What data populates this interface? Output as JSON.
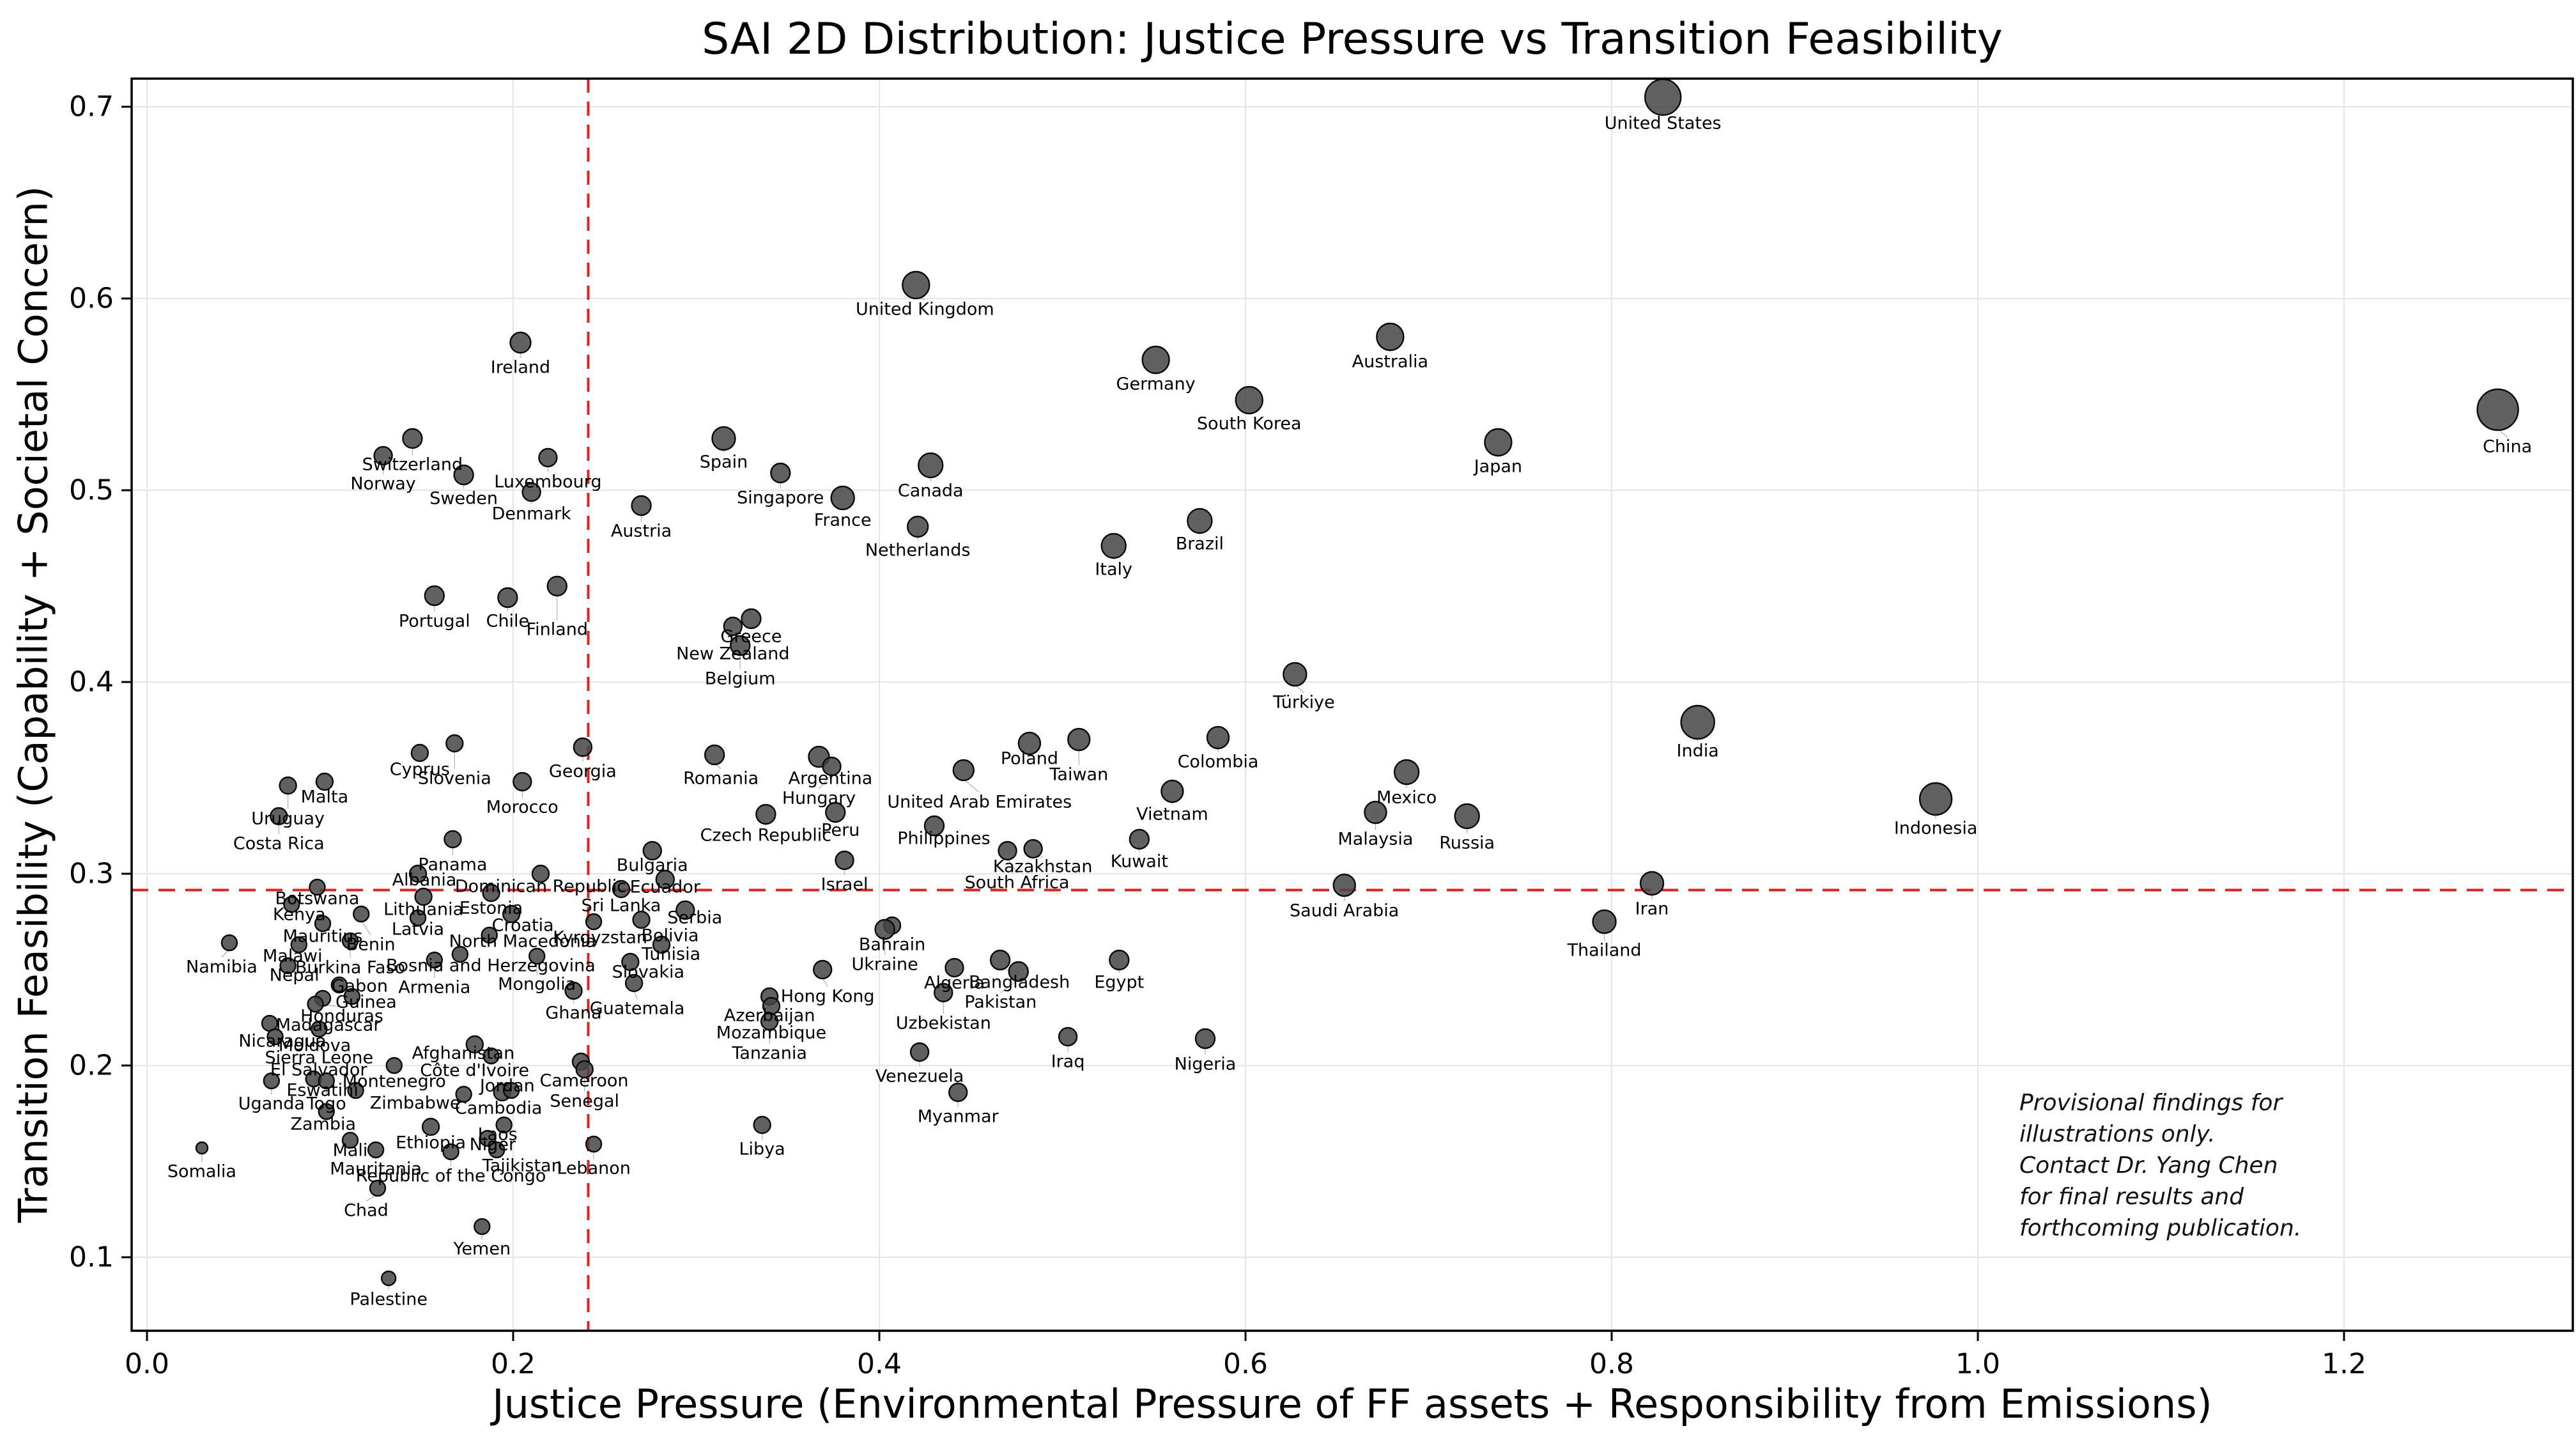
{
  "title": "SAI 2D Distribution: Justice Pressure vs Transition Feasibility",
  "annotation": {
    "lines": [
      "Provisional findings for",
      "illustrations only.",
      "Contact Dr. Yang Chen",
      "for final results and",
      "forthcoming publication."
    ]
  },
  "colors": {
    "dot_fill": "#454545",
    "dot_stroke": "#0a0a0a",
    "grid": "#e5e5e5",
    "threshold": "#dd2222",
    "leader": "#b3b3b3",
    "spine": "#000000"
  },
  "chart_data": {
    "type": "scatter",
    "title": "SAI 2D Distribution: Justice Pressure vs Transition Feasibility",
    "xlabel": "Justice Pressure (Environmental Pressure of FF assets + Responsibility from Emissions)",
    "ylabel": "Transition Feasibility (Capability + Societal Concern)",
    "xlim": [
      -0.0084,
      1.325
    ],
    "ylim": [
      0.0617,
      0.7147
    ],
    "x_ticks": [
      0.0,
      0.2,
      0.4,
      0.6,
      0.8,
      1.0,
      1.2
    ],
    "y_ticks": [
      0.1,
      0.2,
      0.3,
      0.4,
      0.5,
      0.6,
      0.7
    ],
    "x_tick_labels": [
      "0.0",
      "0.2",
      "0.4",
      "0.6",
      "0.8",
      "1.0",
      "1.2"
    ],
    "y_tick_labels": [
      "0.1",
      "0.2",
      "0.3",
      "0.4",
      "0.5",
      "0.6",
      "0.7"
    ],
    "grid": true,
    "threshold_x": 0.241,
    "threshold_y": 0.2915,
    "points": [
      [
        "United States",
        0.828,
        0.705,
        28,
        0,
        41
      ],
      [
        "China",
        1.284,
        0.542,
        32,
        15,
        58
      ],
      [
        "United Kingdom",
        0.42,
        0.607,
        21,
        14,
        38
      ],
      [
        "Australia",
        0.679,
        0.58,
        21,
        0,
        39
      ],
      [
        "Germany",
        0.551,
        0.568,
        21,
        0,
        38
      ],
      [
        "South Korea",
        0.602,
        0.547,
        21,
        0,
        37
      ],
      [
        "Japan",
        0.738,
        0.525,
        21,
        0,
        38
      ],
      [
        "Ireland",
        0.204,
        0.577,
        16,
        0,
        39
      ],
      [
        "Switzerland",
        0.145,
        0.527,
        15,
        0,
        41
      ],
      [
        "Norway",
        0.129,
        0.518,
        14,
        0,
        44
      ],
      [
        "Sweden",
        0.173,
        0.508,
        15,
        0,
        37
      ],
      [
        "Luxembourg",
        0.219,
        0.517,
        14,
        0,
        38
      ],
      [
        "Denmark",
        0.21,
        0.499,
        14,
        0,
        34
      ],
      [
        "Spain",
        0.315,
        0.527,
        18,
        0,
        37
      ],
      [
        "Singapore",
        0.346,
        0.509,
        15,
        0,
        39
      ],
      [
        "France",
        0.38,
        0.496,
        18,
        0,
        35
      ],
      [
        "Canada",
        0.428,
        0.513,
        19,
        0,
        40
      ],
      [
        "Netherlands",
        0.421,
        0.481,
        16,
        0,
        37
      ],
      [
        "Austria",
        0.27,
        0.492,
        15,
        0,
        40
      ],
      [
        "Italy",
        0.528,
        0.471,
        19,
        0,
        37
      ],
      [
        "Brazil",
        0.575,
        0.484,
        19,
        0,
        36
      ],
      [
        "Portugal",
        0.157,
        0.445,
        15,
        0,
        40
      ],
      [
        "Chile",
        0.197,
        0.444,
        15,
        0,
        37
      ],
      [
        "Finland",
        0.224,
        0.45,
        15,
        0,
        68
      ],
      [
        "Greece",
        0.33,
        0.433,
        15,
        0,
        28
      ],
      [
        "New Zealand",
        0.32,
        0.429,
        14,
        0,
        43
      ],
      [
        "Belgium",
        0.324,
        0.419,
        15,
        0,
        52
      ],
      [
        "Türkiye",
        0.627,
        0.404,
        18,
        14,
        44
      ],
      [
        "India",
        0.847,
        0.379,
        26,
        0,
        45
      ],
      [
        "Indonesia",
        0.977,
        0.339,
        25,
        0,
        46
      ],
      [
        "Mexico",
        0.688,
        0.353,
        19,
        0,
        40
      ],
      [
        "Malaysia",
        0.671,
        0.332,
        17,
        0,
        42
      ],
      [
        "Russia",
        0.721,
        0.33,
        19,
        0,
        42
      ],
      [
        "Saudi Arabia",
        0.654,
        0.294,
        17,
        0,
        40
      ],
      [
        "Iran",
        0.822,
        0.295,
        18,
        0,
        40
      ],
      [
        "Thailand",
        0.796,
        0.275,
        18,
        0,
        45
      ],
      [
        "Cyprus",
        0.149,
        0.363,
        13,
        0,
        26
      ],
      [
        "Slovenia",
        0.168,
        0.368,
        13,
        0,
        55
      ],
      [
        "Georgia",
        0.238,
        0.366,
        14,
        0,
        38
      ],
      [
        "Malta",
        0.097,
        0.348,
        13,
        0,
        24
      ],
      [
        "Uruguay",
        0.077,
        0.346,
        13,
        0,
        52
      ],
      [
        "Costa Rica",
        0.072,
        0.33,
        13,
        0,
        43
      ],
      [
        "Morocco",
        0.205,
        0.348,
        14,
        0,
        40
      ],
      [
        "Panama",
        0.167,
        0.318,
        13,
        0,
        40
      ],
      [
        "Romania",
        0.31,
        0.362,
        15,
        10,
        37
      ],
      [
        "Argentina",
        0.367,
        0.361,
        16,
        18,
        34
      ],
      [
        "Hungary",
        0.374,
        0.356,
        14,
        -20,
        50
      ],
      [
        "United Arab Emirates",
        0.446,
        0.354,
        16,
        25,
        50
      ],
      [
        "Poland",
        0.482,
        0.368,
        17,
        0,
        24
      ],
      [
        "Taiwan",
        0.509,
        0.37,
        17,
        0,
        55
      ],
      [
        "Colombia",
        0.585,
        0.371,
        17,
        0,
        38
      ],
      [
        "Vietnam",
        0.56,
        0.343,
        17,
        0,
        36
      ],
      [
        "Peru",
        0.376,
        0.332,
        15,
        8,
        28
      ],
      [
        "Czech Republic",
        0.338,
        0.331,
        15,
        0,
        33
      ],
      [
        "Philippines",
        0.43,
        0.325,
        15,
        15,
        20
      ],
      [
        "Kazakhstan",
        0.484,
        0.313,
        14,
        15,
        28
      ],
      [
        "South Africa",
        0.47,
        0.312,
        14,
        15,
        50
      ],
      [
        "Kuwait",
        0.542,
        0.318,
        15,
        0,
        35
      ],
      [
        "Israel",
        0.381,
        0.307,
        14,
        0,
        38
      ],
      [
        "Bulgaria",
        0.276,
        0.312,
        14,
        0,
        23
      ],
      [
        "Ecuador",
        0.283,
        0.297,
        14,
        0,
        12
      ],
      [
        "Albania",
        0.148,
        0.3,
        13,
        10,
        10
      ],
      [
        "Dominican Republic",
        0.215,
        0.3,
        13,
        0,
        20
      ],
      [
        "Botswana",
        0.093,
        0.293,
        12,
        0,
        18
      ],
      [
        "Kenya",
        0.079,
        0.284,
        12,
        12,
        16
      ],
      [
        "Sri Lanka",
        0.259,
        0.292,
        13,
        0,
        26
      ],
      [
        "Serbia",
        0.294,
        0.281,
        14,
        15,
        12
      ],
      [
        "Lithuania",
        0.151,
        0.288,
        13,
        0,
        20
      ],
      [
        "Estonia",
        0.188,
        0.29,
        13,
        0,
        24
      ],
      [
        "Latvia",
        0.148,
        0.277,
        12,
        0,
        18
      ],
      [
        "Croatia",
        0.199,
        0.279,
        13,
        18,
        18
      ],
      [
        "Mauritius",
        0.096,
        0.274,
        12,
        0,
        20
      ],
      [
        "Bolivia",
        0.27,
        0.276,
        13,
        45,
        25
      ],
      [
        "Kyrgyzstan",
        0.244,
        0.275,
        12,
        10,
        25
      ],
      [
        "Benin",
        0.117,
        0.279,
        12,
        15,
        48
      ],
      [
        "North Macedonia",
        0.187,
        0.268,
        12,
        52,
        10
      ],
      [
        "Tunisia",
        0.281,
        0.263,
        13,
        15,
        15
      ],
      [
        "Malawi",
        0.083,
        0.263,
        12,
        -10,
        18
      ],
      [
        "Burkina Faso",
        0.111,
        0.265,
        12,
        0,
        42
      ],
      [
        "Bosnia and Herzegovina",
        0.171,
        0.258,
        12,
        48,
        18
      ],
      [
        "Namibia",
        0.045,
        0.264,
        12,
        -12,
        38
      ],
      [
        "Nepal",
        0.077,
        0.252,
        12,
        10,
        15
      ],
      [
        "Slovakia",
        0.264,
        0.254,
        13,
        28,
        16
      ],
      [
        "Bahrain",
        0.407,
        0.273,
        13,
        0,
        30
      ],
      [
        "Ukraine",
        0.403,
        0.271,
        15,
        0,
        55
      ],
      [
        "Armenia",
        0.157,
        0.255,
        12,
        0,
        43
      ],
      [
        "Mongolia",
        0.213,
        0.257,
        12,
        0,
        44
      ],
      [
        "Gabon",
        0.105,
        0.242,
        12,
        32,
        2
      ],
      [
        "Guinea",
        0.112,
        0.236,
        12,
        22,
        9
      ],
      [
        "Hong Kong",
        0.369,
        0.25,
        14,
        8,
        42
      ],
      [
        "Guatemala",
        0.266,
        0.243,
        13,
        5,
        40
      ],
      [
        "Ghana",
        0.233,
        0.239,
        13,
        0,
        35
      ],
      [
        "Honduras",
        0.096,
        0.235,
        12,
        30,
        28
      ],
      [
        "Madagascar",
        0.092,
        0.232,
        12,
        20,
        33
      ],
      [
        "Algeria",
        0.441,
        0.251,
        14,
        0,
        24
      ],
      [
        "Bangladesh",
        0.466,
        0.255,
        15,
        30,
        35
      ],
      [
        "Pakistan",
        0.476,
        0.249,
        15,
        -28,
        48
      ],
      [
        "Egypt",
        0.531,
        0.255,
        15,
        0,
        35
      ],
      [
        "Azerbaijan",
        0.34,
        0.236,
        13,
        0,
        30
      ],
      [
        "Mozambique",
        0.341,
        0.231,
        13,
        0,
        42
      ],
      [
        "Tanzania",
        0.34,
        0.223,
        13,
        0,
        50
      ],
      [
        "Uzbekistan",
        0.435,
        0.238,
        14,
        0,
        48
      ],
      [
        "Nicaragua",
        0.067,
        0.222,
        12,
        20,
        28
      ],
      [
        "Moldova",
        0.07,
        0.215,
        12,
        62,
        14
      ],
      [
        "Sierra Leone",
        0.094,
        0.219,
        12,
        0,
        45
      ],
      [
        "El Salvador",
        0.091,
        0.193,
        12,
        8,
        -14
      ],
      [
        "Eswatini",
        0.114,
        0.187,
        12,
        -52,
        0
      ],
      [
        "Afghanistan",
        0.179,
        0.211,
        13,
        -18,
        14
      ],
      [
        "Côte d'Ivoire",
        0.188,
        0.205,
        12,
        -26,
        23
      ],
      [
        "Montenegro",
        0.135,
        0.2,
        12,
        0,
        25
      ],
      [
        "Jordan",
        0.194,
        0.186,
        13,
        8,
        -10
      ],
      [
        "Cameroon",
        0.237,
        0.202,
        13,
        5,
        30
      ],
      [
        "Senegal",
        0.239,
        0.198,
        13,
        0,
        50
      ],
      [
        "Uganda",
        0.068,
        0.192,
        12,
        0,
        36
      ],
      [
        "Togo",
        0.098,
        0.192,
        12,
        0,
        36
      ],
      [
        "Zimbabwe",
        0.173,
        0.185,
        12,
        -76,
        14
      ],
      [
        "Cambodia",
        0.199,
        0.187,
        12,
        -20,
        28
      ],
      [
        "Zambia",
        0.098,
        0.176,
        12,
        -5,
        20
      ],
      [
        "Laos",
        0.195,
        0.169,
        12,
        -10,
        15
      ],
      [
        "Mali",
        0.111,
        0.161,
        12,
        0,
        16
      ],
      [
        "Ethiopia",
        0.155,
        0.168,
        13,
        0,
        25
      ],
      [
        "Niger",
        0.186,
        0.162,
        12,
        8,
        10
      ],
      [
        "Venezuela",
        0.422,
        0.207,
        14,
        0,
        38
      ],
      [
        "Myanmar",
        0.443,
        0.186,
        14,
        0,
        38
      ],
      [
        "Iraq",
        0.503,
        0.215,
        14,
        0,
        39
      ],
      [
        "Nigeria",
        0.578,
        0.214,
        15,
        0,
        40
      ],
      [
        "Libya",
        0.336,
        0.169,
        13,
        0,
        38
      ],
      [
        "Somalia",
        0.03,
        0.157,
        9,
        0,
        37
      ],
      [
        "Mauritania",
        0.125,
        0.156,
        12,
        0,
        30
      ],
      [
        "Tajikistan",
        0.191,
        0.156,
        12,
        40,
        25
      ],
      [
        "Lebanon",
        0.244,
        0.159,
        12,
        0,
        38
      ],
      [
        "Republic of the Congo",
        0.166,
        0.155,
        12,
        0,
        38
      ],
      [
        "Chad",
        0.126,
        0.136,
        12,
        -18,
        35
      ],
      [
        "Yemen",
        0.183,
        0.116,
        12,
        0,
        35
      ],
      [
        "Palestine",
        0.132,
        0.089,
        11,
        0,
        33
      ]
    ]
  }
}
